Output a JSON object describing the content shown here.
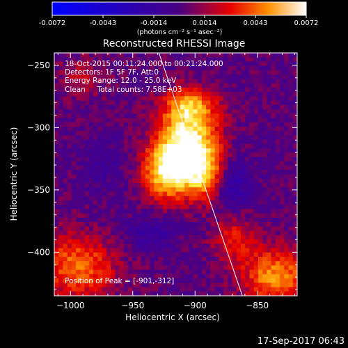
{
  "chart_data": {
    "type": "heatmap",
    "title": "Reconstructed RHESSI Image",
    "xlabel": "Heliocentric X (arcsec)",
    "ylabel": "Heliocentric Y (arcsec)",
    "xlim": [
      -1013,
      -818
    ],
    "ylim": [
      -435,
      -240
    ],
    "x_ticks": [
      -1000,
      -950,
      -900,
      -850
    ],
    "y_ticks": [
      -250,
      -300,
      -350,
      -400
    ],
    "colorbar": {
      "ticks": [
        "-0.0072",
        "-0.0043",
        "-0.0014",
        "0.0014",
        "0.0043",
        "0.0072"
      ],
      "range": [
        -0.0072,
        0.0072
      ],
      "unit_label": "(photons cm⁻² s⁻¹ asec⁻²)"
    },
    "annotations": [
      "18-Oct-2015 00:11:24.000 to 00:21:24.000",
      "Detectors: 1F 5F 7F, Att:0",
      "Energy Range: 12.0 - 25.0 keV",
      "Clean     Total counts: 7.58E+03"
    ],
    "peak_label": "Position of Peak = [-901,-312]",
    "peak": {
      "x": -901,
      "y": -312
    },
    "limb_line": [
      {
        "x": -929,
        "y": -240
      },
      {
        "x": -862,
        "y": -435
      }
    ],
    "sources": [
      {
        "x": -905,
        "y": -313,
        "amp": 1.0,
        "sx": 16,
        "sy": 22
      },
      {
        "x": -925,
        "y": -335,
        "amp": 0.75,
        "sx": 12,
        "sy": 16
      },
      {
        "x": -893,
        "y": -338,
        "amp": 0.55,
        "sx": 12,
        "sy": 14
      },
      {
        "x": -905,
        "y": -282,
        "amp": 0.45,
        "sx": 15,
        "sy": 9
      },
      {
        "x": -995,
        "y": -412,
        "amp": 0.55,
        "sx": 22,
        "sy": 18
      },
      {
        "x": -835,
        "y": -420,
        "amp": 0.65,
        "sx": 18,
        "sy": 16
      },
      {
        "x": -868,
        "y": -390,
        "amp": 0.35,
        "sx": 12,
        "sy": 14
      },
      {
        "x": -990,
        "y": -260,
        "amp": 0.2,
        "sx": 14,
        "sy": 12
      },
      {
        "x": -870,
        "y": -345,
        "amp": -0.4,
        "sx": 10,
        "sy": 14
      },
      {
        "x": -935,
        "y": -385,
        "amp": -0.25,
        "sx": 14,
        "sy": 10
      },
      {
        "x": -975,
        "y": -330,
        "amp": -0.15,
        "sx": 12,
        "sy": 16
      }
    ]
  },
  "timestamp": "17-Sep-2017 06:43"
}
